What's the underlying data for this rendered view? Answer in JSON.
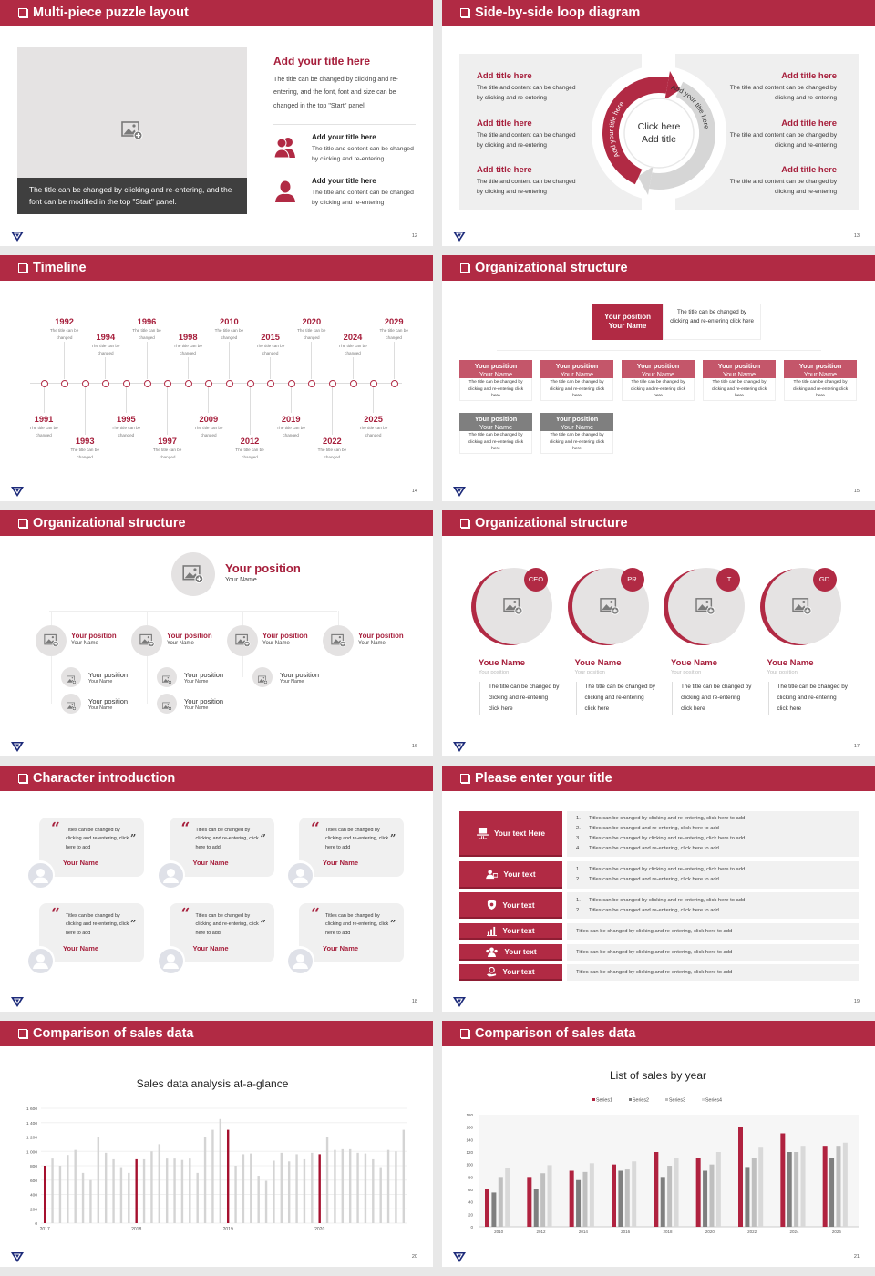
{
  "colors": {
    "accent": "#b12a44",
    "text_red": "#a61e3b",
    "panel_gray": "#efefef",
    "member_red": "#c4566a",
    "member_gray": "#7f7f7f",
    "bar_gray": "#d4d4d4"
  },
  "puzzle": {
    "title": "Multi-piece puzzle layout",
    "page": "12",
    "caption": "The title can be changed by clicking and re-entering, and the font can be modified in the top \"Start\" panel.",
    "heading": "Add your title here",
    "body": "The title can be changed by clicking and re-entering, and the font, font and size can be changed in the top \"Start\" panel",
    "items": [
      {
        "icon": "users-icon",
        "title": "Add your title here",
        "body": "The title and content can be changed by clicking and re-entering"
      },
      {
        "icon": "user-icon",
        "title": "Add your title here",
        "body": "The title and content can be changed by clicking and re-entering"
      }
    ]
  },
  "loop": {
    "title": "Side-by-side loop diagram",
    "page": "13",
    "center": [
      "Click here",
      "Add title"
    ],
    "arc_left": "Add your title here",
    "arc_right": "Add your title here",
    "left_items": [
      {
        "title": "Add title here",
        "body": "The title and content can be changed by clicking and re-entering"
      },
      {
        "title": "Add title here",
        "body": "The title and content can be changed by clicking and re-entering"
      },
      {
        "title": "Add title here",
        "body": "The title and content can be changed by clicking and re-entering"
      }
    ],
    "right_items": [
      {
        "title": "Add title here",
        "body": "The title and content can be changed by clicking and re-entering"
      },
      {
        "title": "Add title here",
        "body": "The title and content can be changed by clicking and re-entering"
      },
      {
        "title": "Add title here",
        "body": "The title and content can be changed by clicking and re-entering"
      }
    ]
  },
  "timeline": {
    "title": "Timeline",
    "page": "14",
    "events": [
      {
        "year": "1991",
        "text": "The title can be changed"
      },
      {
        "year": "1992",
        "text": "The title can be changed"
      },
      {
        "year": "1993",
        "text": "The title can be changed"
      },
      {
        "year": "1994",
        "text": "The title can be changed"
      },
      {
        "year": "1995",
        "text": "The title can be changed"
      },
      {
        "year": "1996",
        "text": "The title can be changed"
      },
      {
        "year": "1997",
        "text": "The title can be changed"
      },
      {
        "year": "1998",
        "text": "The title can be changed"
      },
      {
        "year": "2009",
        "text": "The title can be changed"
      },
      {
        "year": "2010",
        "text": "The title can be changed"
      },
      {
        "year": "2012",
        "text": "The title can be changed"
      },
      {
        "year": "2015",
        "text": "The title can be changed"
      },
      {
        "year": "2019",
        "text": "The title can be changed"
      },
      {
        "year": "2020",
        "text": "The title can be changed"
      },
      {
        "year": "2022",
        "text": "The title can be changed"
      },
      {
        "year": "2024",
        "text": "The title can be changed"
      },
      {
        "year": "2025",
        "text": "The title can be changed"
      },
      {
        "year": "2029",
        "text": "The title can be changed"
      }
    ]
  },
  "org1": {
    "title": "Organizational structure",
    "page": "15",
    "head": {
      "position": "Your position",
      "name": "Your Name",
      "desc": "The title can be changed by clicking and re-entering click here"
    },
    "rows": [
      [
        {
          "position": "Your position",
          "name": "Your Name",
          "desc": "The title can be changed by clicking and re-entering click here"
        },
        {
          "position": "Your position",
          "name": "Your Name",
          "desc": "The title can be changed by clicking and re-entering click here"
        },
        {
          "position": "Your position",
          "name": "Your Name",
          "desc": "The title can be changed by clicking and re-entering click here"
        },
        {
          "position": "Your position",
          "name": "Your Name",
          "desc": "The title can be changed by clicking and re-entering click here"
        },
        {
          "position": "Your position",
          "name": "Your Name",
          "desc": "The title can be changed by clicking and re-entering click here"
        }
      ],
      [
        {
          "position": "Your position",
          "name": "Your Name",
          "desc": "The title can be changed by clicking and re-entering click here"
        },
        {
          "position": "Your position",
          "name": "Your Name",
          "desc": "The title can be changed by clicking and re-entering click here"
        }
      ]
    ]
  },
  "org2": {
    "title": "Organizational structure",
    "page": "16",
    "top": {
      "position": "Your position",
      "name": "Your Name"
    },
    "branches": [
      {
        "position": "Your position",
        "name": "Your Name",
        "children": [
          {
            "position": "Your position",
            "name": "Your Name"
          },
          {
            "position": "Your position",
            "name": "Your Name"
          }
        ]
      },
      {
        "position": "Your position",
        "name": "Your Name",
        "children": [
          {
            "position": "Your position",
            "name": "Your Name"
          },
          {
            "position": "Your position",
            "name": "Your Name"
          }
        ]
      },
      {
        "position": "Your position",
        "name": "Your Name",
        "children": [
          {
            "position": "Your position",
            "name": "Your Name"
          }
        ]
      },
      {
        "position": "Your position",
        "name": "Your Name",
        "children": []
      }
    ]
  },
  "org3": {
    "title": "Organizational structure",
    "page": "17",
    "people": [
      {
        "badge": "CEO",
        "name": "Youe Name",
        "position": "Your position",
        "desc": "The title can be changed by clicking and re-entering click here"
      },
      {
        "badge": "PR",
        "name": "Youe Name",
        "position": "Your position",
        "desc": "The title can be changed by clicking and re-entering click here"
      },
      {
        "badge": "IT",
        "name": "Youe Name",
        "position": "Your position",
        "desc": "The title can be changed by clicking and re-entering click here"
      },
      {
        "badge": "GD",
        "name": "Youe Name",
        "position": "Your position",
        "desc": "The title can be changed by clicking and re-entering click here"
      }
    ]
  },
  "characters": {
    "title": "Character introduction",
    "page": "18",
    "cards": [
      {
        "quote": "Titles can be changed by clicking and re-entering, click here to add",
        "name": "Your Name"
      },
      {
        "quote": "Titles can be changed by clicking and re-entering, click here to add",
        "name": "Your Name"
      },
      {
        "quote": "Titles can be changed by clicking and re-entering, click here to add",
        "name": "Your Name"
      },
      {
        "quote": "Titles can be changed by clicking and re-entering, click here to add",
        "name": "Your Name"
      },
      {
        "quote": "Titles can be changed by clicking and re-entering, click here to add",
        "name": "Your Name"
      },
      {
        "quote": "Titles can be changed by clicking and re-entering, click here to add",
        "name": "Your Name"
      }
    ]
  },
  "table": {
    "title": "Please enter your title",
    "page": "19",
    "rows": [
      {
        "icon": "presentation-icon",
        "label": "Your text Here",
        "lines": [
          "Titles can be changed by clicking and re-entering, click here to add",
          "Titles can be changed and re-entering, click here to add",
          "Titles can be changed by clicking and re-entering, click here to add",
          "Titles can be changed and re-entering, click here to add"
        ]
      },
      {
        "icon": "user-card-icon",
        "label": "Your text",
        "lines": [
          "Titles can be changed by clicking and re-entering, click here to add",
          "Titles can be changed and re-entering, click here to add"
        ]
      },
      {
        "icon": "shield-icon",
        "label": "Your text",
        "lines": [
          "Titles can be changed by clicking and re-entering, click here to add",
          "Titles can be changed and re-entering, click here to add"
        ]
      },
      {
        "icon": "bar-chart-icon",
        "label": "Your text",
        "text": "Titles can be changed by clicking and re-entering, click here to add"
      },
      {
        "icon": "team-icon",
        "label": "Your text",
        "text": "Titles can be changed by clicking and re-entering, click here to add"
      },
      {
        "icon": "hand-coin-icon",
        "label": "Your text",
        "text": "Titles can be changed by clicking and re-entering, click here to add"
      }
    ]
  },
  "chart1": {
    "title": "Comparison of sales data",
    "page": "20"
  },
  "chart2": {
    "title": "Comparison of sales data",
    "page": "21"
  },
  "chart_data": [
    {
      "type": "bar",
      "title": "Sales data analysis at-a-glance",
      "xlabel": "",
      "ylabel": "",
      "ylim": [
        0,
        1600
      ],
      "yticks": [
        "0",
        "200",
        "400",
        "600",
        "800",
        "1 000",
        "1 200",
        "1 400",
        "1 600"
      ],
      "x_labels": [
        {
          "index": 0,
          "label": "2017"
        },
        {
          "index": 12,
          "label": "2018"
        },
        {
          "index": 24,
          "label": "2019"
        },
        {
          "index": 36,
          "label": "2020"
        }
      ],
      "highlight_indices": [
        0,
        12,
        24,
        36
      ],
      "grid": true,
      "values": [
        800,
        900,
        800,
        950,
        1020,
        700,
        600,
        1200,
        980,
        890,
        780,
        700,
        890,
        890,
        1000,
        1100,
        900,
        900,
        880,
        900,
        700,
        1200,
        1300,
        1450,
        1300,
        800,
        960,
        970,
        660,
        590,
        870,
        980,
        860,
        960,
        890,
        980,
        960,
        1200,
        1020,
        1030,
        1030,
        980,
        970,
        890,
        780,
        1020,
        1000,
        1300
      ]
    },
    {
      "type": "bar",
      "title": "List of sales by year",
      "xlabel": "",
      "ylabel": "",
      "ylim": [
        0,
        180
      ],
      "yticks": [
        "0",
        "20",
        "40",
        "60",
        "80",
        "100",
        "120",
        "140",
        "160",
        "180"
      ],
      "categories": [
        "2010",
        "2012",
        "2014",
        "2016",
        "2018",
        "2020",
        "2022",
        "2024",
        "2026"
      ],
      "legend": "top",
      "grid": false,
      "series": [
        {
          "name": "Series1",
          "color": "#b0223f",
          "values": [
            60,
            80,
            90,
            100,
            120,
            110,
            160,
            150,
            130
          ]
        },
        {
          "name": "Series2",
          "color": "#7f7f7f",
          "values": [
            55,
            60,
            75,
            90,
            80,
            90,
            96,
            120,
            110
          ]
        },
        {
          "name": "Series3",
          "color": "#bfbfbf",
          "values": [
            80,
            86,
            88,
            92,
            98,
            100,
            110,
            120,
            130
          ]
        },
        {
          "name": "Series4",
          "color": "#d9d9d9",
          "values": [
            95,
            99,
            102,
            105,
            110,
            120,
            127,
            130,
            135
          ]
        }
      ]
    }
  ]
}
